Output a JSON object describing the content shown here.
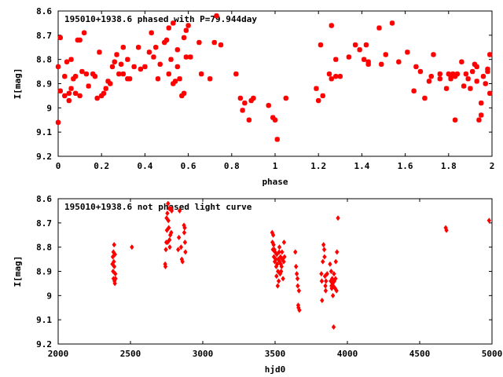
{
  "chart_data": [
    {
      "type": "scatter",
      "title": "195010+1938.6 phased with P=79.944day",
      "xlabel": "phase",
      "ylabel": "I[mag]",
      "xlim": [
        0,
        2
      ],
      "ylim": [
        8.6,
        9.2
      ],
      "y_inverted": true,
      "x_ticks": [
        "0",
        "0.2",
        "0.4",
        "0.6",
        "0.8",
        "1",
        "1.2",
        "1.4",
        "1.6",
        "1.8",
        "2"
      ],
      "y_ticks": [
        "8.6",
        "8.7",
        "8.8",
        "8.9",
        "9",
        "9.1",
        "9.2"
      ],
      "marker": "star",
      "color": "#ff0000",
      "points": [
        [
          0.0,
          8.83
        ],
        [
          0.0,
          9.06
        ],
        [
          0.01,
          8.71
        ],
        [
          0.01,
          8.93
        ],
        [
          0.03,
          8.87
        ],
        [
          0.03,
          8.95
        ],
        [
          0.04,
          8.81
        ],
        [
          0.05,
          8.94
        ],
        [
          0.05,
          8.97
        ],
        [
          0.06,
          8.8
        ],
        [
          0.06,
          8.92
        ],
        [
          0.07,
          8.88
        ],
        [
          0.08,
          8.87
        ],
        [
          0.08,
          8.94
        ],
        [
          0.09,
          8.72
        ],
        [
          0.1,
          8.72
        ],
        [
          0.1,
          8.95
        ],
        [
          0.11,
          8.85
        ],
        [
          0.12,
          8.69
        ],
        [
          0.13,
          8.86
        ],
        [
          0.14,
          8.91
        ],
        [
          0.16,
          8.86
        ],
        [
          0.17,
          8.87
        ],
        [
          0.18,
          8.96
        ],
        [
          0.19,
          8.77
        ],
        [
          0.2,
          8.95
        ],
        [
          0.21,
          8.94
        ],
        [
          0.22,
          8.92
        ],
        [
          0.23,
          8.89
        ],
        [
          0.24,
          8.9
        ],
        [
          0.25,
          8.83
        ],
        [
          0.26,
          8.81
        ],
        [
          0.27,
          8.78
        ],
        [
          0.28,
          8.86
        ],
        [
          0.29,
          8.82
        ],
        [
          0.3,
          8.86
        ],
        [
          0.3,
          8.75
        ],
        [
          0.32,
          8.8
        ],
        [
          0.32,
          8.88
        ],
        [
          0.33,
          8.88
        ],
        [
          0.35,
          8.83
        ],
        [
          0.37,
          8.75
        ],
        [
          0.38,
          8.84
        ],
        [
          0.4,
          8.83
        ],
        [
          0.42,
          8.77
        ],
        [
          0.43,
          8.69
        ],
        [
          0.44,
          8.79
        ],
        [
          0.45,
          8.75
        ],
        [
          0.46,
          8.88
        ],
        [
          0.47,
          8.82
        ],
        [
          0.49,
          8.73
        ],
        [
          0.5,
          8.72
        ],
        [
          0.51,
          8.86
        ],
        [
          0.51,
          8.67
        ],
        [
          0.52,
          8.8
        ],
        [
          0.53,
          8.9
        ],
        [
          0.53,
          8.65
        ],
        [
          0.54,
          8.89
        ],
        [
          0.55,
          8.83
        ],
        [
          0.55,
          8.76
        ],
        [
          0.56,
          8.88
        ],
        [
          0.57,
          8.95
        ],
        [
          0.58,
          8.71
        ],
        [
          0.58,
          8.94
        ],
        [
          0.59,
          8.68
        ],
        [
          0.59,
          8.79
        ],
        [
          0.6,
          8.66
        ],
        [
          0.61,
          8.79
        ],
        [
          0.65,
          8.73
        ],
        [
          0.66,
          8.86
        ],
        [
          0.7,
          8.88
        ],
        [
          0.72,
          8.73
        ],
        [
          0.73,
          8.62
        ],
        [
          0.75,
          8.74
        ],
        [
          0.82,
          8.86
        ],
        [
          0.84,
          8.96
        ],
        [
          0.85,
          9.01
        ],
        [
          0.86,
          8.98
        ],
        [
          0.88,
          9.05
        ],
        [
          0.89,
          8.97
        ],
        [
          0.9,
          8.96
        ],
        [
          0.97,
          8.99
        ],
        [
          0.99,
          9.04
        ],
        [
          1.0,
          9.05
        ],
        [
          1.01,
          9.13
        ],
        [
          1.05,
          8.96
        ],
        [
          1.19,
          8.92
        ],
        [
          1.2,
          8.97
        ],
        [
          1.21,
          8.74
        ],
        [
          1.22,
          8.95
        ],
        [
          1.25,
          8.86
        ],
        [
          1.26,
          8.66
        ],
        [
          1.26,
          8.88
        ],
        [
          1.28,
          8.8
        ],
        [
          1.28,
          8.87
        ],
        [
          1.3,
          8.87
        ],
        [
          1.34,
          8.79
        ],
        [
          1.37,
          8.74
        ],
        [
          1.39,
          8.76
        ],
        [
          1.41,
          8.8
        ],
        [
          1.42,
          8.74
        ],
        [
          1.43,
          8.82
        ],
        [
          1.43,
          8.81
        ],
        [
          1.48,
          8.67
        ],
        [
          1.49,
          8.82
        ],
        [
          1.51,
          8.78
        ],
        [
          1.54,
          8.65
        ],
        [
          1.57,
          8.81
        ],
        [
          1.61,
          8.77
        ],
        [
          1.64,
          8.93
        ],
        [
          1.65,
          8.83
        ],
        [
          1.67,
          8.85
        ],
        [
          1.69,
          8.96
        ],
        [
          1.71,
          8.89
        ],
        [
          1.72,
          8.87
        ],
        [
          1.73,
          8.78
        ],
        [
          1.76,
          8.86
        ],
        [
          1.76,
          8.88
        ],
        [
          1.79,
          8.92
        ],
        [
          1.8,
          8.86
        ],
        [
          1.81,
          8.87
        ],
        [
          1.81,
          8.88
        ],
        [
          1.82,
          8.86
        ],
        [
          1.83,
          8.87
        ],
        [
          1.83,
          9.05
        ],
        [
          1.84,
          8.86
        ],
        [
          1.86,
          8.81
        ],
        [
          1.87,
          8.91
        ],
        [
          1.88,
          8.86
        ],
        [
          1.89,
          8.88
        ],
        [
          1.9,
          8.92
        ],
        [
          1.91,
          8.85
        ],
        [
          1.92,
          8.82
        ],
        [
          1.93,
          8.83
        ],
        [
          1.93,
          8.89
        ],
        [
          1.94,
          9.05
        ],
        [
          1.95,
          9.03
        ],
        [
          1.95,
          8.98
        ],
        [
          1.96,
          8.87
        ],
        [
          1.97,
          8.9
        ],
        [
          1.98,
          8.85
        ],
        [
          1.98,
          8.84
        ],
        [
          1.99,
          8.94
        ],
        [
          1.99,
          8.78
        ]
      ]
    },
    {
      "type": "scatter",
      "title": "195010+1938.6 not phased light curve",
      "xlabel": "hjd0",
      "ylabel": "I[mag]",
      "xlim": [
        2000,
        5000
      ],
      "ylim": [
        8.6,
        9.2
      ],
      "y_inverted": true,
      "x_ticks": [
        "2000",
        "2500",
        "3000",
        "3500",
        "4000",
        "4500",
        "5000"
      ],
      "y_ticks": [
        "8.6",
        "8.7",
        "8.8",
        "8.9",
        "9",
        "9.1",
        "9.2"
      ],
      "marker": "diamond",
      "color": "#ff0000",
      "points": [
        [
          2375,
          8.87
        ],
        [
          2378,
          8.84
        ],
        [
          2380,
          8.9
        ],
        [
          2382,
          8.82
        ],
        [
          2383,
          8.93
        ],
        [
          2385,
          8.86
        ],
        [
          2387,
          8.79
        ],
        [
          2388,
          8.88
        ],
        [
          2390,
          8.94
        ],
        [
          2392,
          8.95
        ],
        [
          2393,
          8.83
        ],
        [
          2395,
          8.91
        ],
        [
          2397,
          8.93
        ],
        [
          2510,
          8.8
        ],
        [
          2740,
          8.87
        ],
        [
          2742,
          8.88
        ],
        [
          2745,
          8.81
        ],
        [
          2748,
          8.78
        ],
        [
          2750,
          8.68
        ],
        [
          2752,
          8.73
        ],
        [
          2755,
          8.66
        ],
        [
          2757,
          8.78
        ],
        [
          2760,
          8.62
        ],
        [
          2762,
          8.69
        ],
        [
          2765,
          8.72
        ],
        [
          2768,
          8.64
        ],
        [
          2770,
          8.77
        ],
        [
          2772,
          8.8
        ],
        [
          2775,
          8.75
        ],
        [
          2780,
          8.64
        ],
        [
          2782,
          8.74
        ],
        [
          2785,
          8.65
        ],
        [
          2830,
          8.81
        ],
        [
          2835,
          8.76
        ],
        [
          2840,
          8.65
        ],
        [
          2850,
          8.8
        ],
        [
          2855,
          8.85
        ],
        [
          2860,
          8.86
        ],
        [
          2870,
          8.71
        ],
        [
          2872,
          8.74
        ],
        [
          2875,
          8.72
        ],
        [
          2877,
          8.78
        ],
        [
          2880,
          8.82
        ],
        [
          3480,
          8.74
        ],
        [
          3482,
          8.78
        ],
        [
          3485,
          8.81
        ],
        [
          3487,
          8.75
        ],
        [
          3490,
          8.79
        ],
        [
          3492,
          8.84
        ],
        [
          3495,
          8.81
        ],
        [
          3498,
          8.86
        ],
        [
          3500,
          8.82
        ],
        [
          3505,
          8.85
        ],
        [
          3508,
          8.88
        ],
        [
          3510,
          8.92
        ],
        [
          3512,
          8.83
        ],
        [
          3515,
          8.87
        ],
        [
          3518,
          8.96
        ],
        [
          3520,
          8.9
        ],
        [
          3522,
          8.85
        ],
        [
          3525,
          8.94
        ],
        [
          3528,
          8.82
        ],
        [
          3530,
          8.8
        ],
        [
          3532,
          8.86
        ],
        [
          3535,
          8.91
        ],
        [
          3538,
          8.84
        ],
        [
          3540,
          8.87
        ],
        [
          3542,
          8.9
        ],
        [
          3545,
          8.88
        ],
        [
          3548,
          8.82
        ],
        [
          3550,
          8.85
        ],
        [
          3555,
          8.93
        ],
        [
          3560,
          8.86
        ],
        [
          3562,
          8.78
        ],
        [
          3565,
          8.84
        ],
        [
          3640,
          8.82
        ],
        [
          3645,
          8.88
        ],
        [
          3650,
          8.91
        ],
        [
          3655,
          8.93
        ],
        [
          3657,
          8.96
        ],
        [
          3660,
          9.04
        ],
        [
          3662,
          9.05
        ],
        [
          3665,
          8.98
        ],
        [
          3668,
          9.06
        ],
        [
          3820,
          8.91
        ],
        [
          3823,
          8.94
        ],
        [
          3825,
          9.02
        ],
        [
          3830,
          8.86
        ],
        [
          3835,
          8.79
        ],
        [
          3840,
          8.81
        ],
        [
          3842,
          8.84
        ],
        [
          3845,
          8.92
        ],
        [
          3848,
          8.96
        ],
        [
          3850,
          8.98
        ],
        [
          3852,
          8.94
        ],
        [
          3860,
          8.91
        ],
        [
          3880,
          8.87
        ],
        [
          3885,
          8.94
        ],
        [
          3888,
          8.9
        ],
        [
          3890,
          8.96
        ],
        [
          3892,
          8.97
        ],
        [
          3895,
          8.93
        ],
        [
          3898,
          8.95
        ],
        [
          3900,
          9.0
        ],
        [
          3902,
          8.96
        ],
        [
          3905,
          9.13
        ],
        [
          3907,
          8.91
        ],
        [
          3910,
          8.94
        ],
        [
          3915,
          8.97
        ],
        [
          3918,
          8.93
        ],
        [
          3920,
          8.86
        ],
        [
          3925,
          8.98
        ],
        [
          3928,
          8.82
        ],
        [
          3935,
          8.68
        ],
        [
          4680,
          8.72
        ],
        [
          4685,
          8.73
        ],
        [
          4980,
          8.69
        ]
      ]
    }
  ]
}
